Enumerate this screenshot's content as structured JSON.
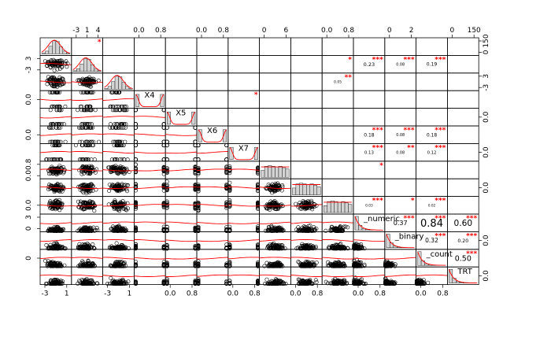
{
  "chart_data": {
    "type": "scatter-matrix",
    "variables": [
      "",
      "",
      "",
      "X4",
      "X5",
      "X6",
      "X7",
      "",
      "",
      "",
      "_numeric",
      "_binary",
      "_count",
      "TRT"
    ],
    "grid_size": 14,
    "cells": [
      {
        "r": 0,
        "c": 1,
        "v": "",
        "s": "*"
      },
      {
        "r": 1,
        "c": 12,
        "v": "0.19",
        "s": "***"
      },
      {
        "r": 1,
        "c": 10,
        "v": "0.23",
        "s": "***"
      },
      {
        "r": 1,
        "c": 11,
        "v": "0.08",
        "s": "***"
      },
      {
        "r": 1,
        "c": 9,
        "v": "",
        "s": "*"
      },
      {
        "r": 2,
        "c": 9,
        "v": "0.05",
        "s": "**"
      },
      {
        "r": 3,
        "c": 6,
        "v": "",
        "s": "*"
      },
      {
        "r": 5,
        "c": 10,
        "v": "0.18",
        "s": "***"
      },
      {
        "r": 5,
        "c": 11,
        "v": "0.08",
        "s": "***"
      },
      {
        "r": 5,
        "c": 12,
        "v": "0.18",
        "s": "***"
      },
      {
        "r": 6,
        "c": 10,
        "v": "0.13",
        "s": "***"
      },
      {
        "r": 6,
        "c": 11,
        "v": "0.08",
        "s": "**"
      },
      {
        "r": 6,
        "c": 12,
        "v": "0.12",
        "s": "***"
      },
      {
        "r": 7,
        "c": 10,
        "v": "",
        "s": "*"
      },
      {
        "r": 9,
        "c": 10,
        "v": "0.03",
        "s": "***"
      },
      {
        "r": 9,
        "c": 11,
        "v": "",
        "s": "*"
      },
      {
        "r": 9,
        "c": 12,
        "v": "0.02",
        "s": "***"
      },
      {
        "r": 10,
        "c": 11,
        "v": "0.37",
        "s": "***"
      },
      {
        "r": 10,
        "c": 12,
        "v": "0.84",
        "s": "***"
      },
      {
        "r": 10,
        "c": 13,
        "v": "0.60",
        "s": "***"
      },
      {
        "r": 11,
        "c": 12,
        "v": "0.32",
        "s": "***"
      },
      {
        "r": 11,
        "c": 13,
        "v": "0.20",
        "s": "***"
      },
      {
        "r": 12,
        "c": 13,
        "v": "0.50",
        "s": "***"
      }
    ],
    "top_ticks": [
      {
        "col": 1,
        "labels": [
          "-3",
          "1",
          "4"
        ]
      },
      {
        "col": 3,
        "labels": [
          "0.0",
          "0.8"
        ]
      },
      {
        "col": 5,
        "labels": [
          "0.0",
          "0.8"
        ]
      },
      {
        "col": 7,
        "labels": [
          "0",
          "6"
        ]
      },
      {
        "col": 9,
        "labels": [
          "0.0",
          "0.8"
        ]
      },
      {
        "col": 11,
        "labels": [
          "0",
          "2"
        ]
      },
      {
        "col": 13,
        "labels": [
          "0",
          "150"
        ]
      }
    ],
    "bottom_ticks": [
      {
        "col": 0,
        "labels": [
          "-3",
          "1"
        ]
      },
      {
        "col": 2,
        "labels": [
          "-3",
          "1"
        ]
      },
      {
        "col": 4,
        "labels": [
          "0.0",
          "0.8"
        ]
      },
      {
        "col": 6,
        "labels": [
          "0.0",
          "0.8"
        ]
      },
      {
        "col": 8,
        "labels": [
          "0.0",
          "0.8"
        ]
      },
      {
        "col": 10,
        "labels": [
          "0.0",
          "0.8"
        ]
      },
      {
        "col": 12,
        "labels": [
          "0.0",
          "0.8"
        ]
      }
    ],
    "left_ticks": [
      {
        "row": 1,
        "labels": [
          "-3",
          "3"
        ]
      },
      {
        "row": 3,
        "labels": [
          "0.0"
        ]
      },
      {
        "row": 5,
        "labels": [
          "0.0"
        ]
      },
      {
        "row": 7,
        "labels": [
          "0.0",
          "0.8"
        ]
      },
      {
        "row": 9,
        "labels": [
          "0.0"
        ]
      },
      {
        "row": 10,
        "labels": [
          "0",
          "3"
        ]
      },
      {
        "row": 12,
        "labels": [
          "0"
        ]
      }
    ],
    "right_ticks": [
      {
        "row": 0,
        "labels": [
          "0",
          "150"
        ]
      },
      {
        "row": 2,
        "labels": [
          "-3",
          "3"
        ]
      },
      {
        "row": 4,
        "labels": [
          "0.0"
        ]
      },
      {
        "row": 6,
        "labels": [
          "0.0"
        ]
      },
      {
        "row": 8,
        "labels": [
          "0.0"
        ]
      },
      {
        "row": 11,
        "labels": [
          "0.0"
        ]
      },
      {
        "row": 13,
        "labels": [
          "0.0"
        ]
      }
    ],
    "colors": {
      "points": "#000000",
      "smooth": "#ff0000",
      "hist": "#d3d3d3",
      "stars": "#ff0000"
    }
  }
}
